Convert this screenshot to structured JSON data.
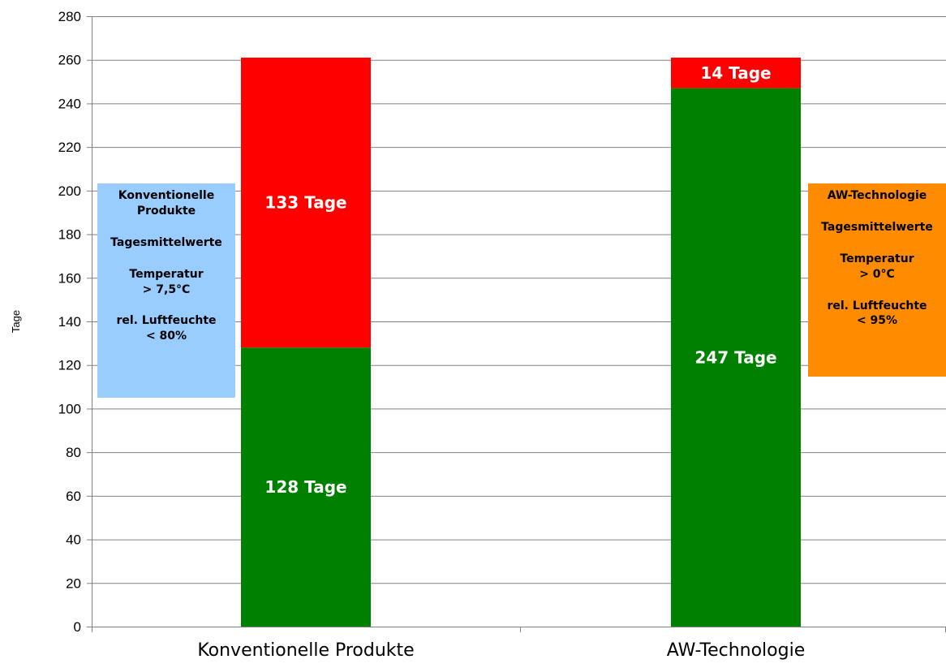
{
  "chart_data": {
    "type": "bar",
    "stacked": true,
    "categories": [
      "Konventionelle Produkte",
      "AW-Technologie"
    ],
    "series": [
      {
        "values": [
          128,
          247
        ],
        "labels": [
          "128 Tage",
          "247 Tage"
        ],
        "color": "#008000"
      },
      {
        "values": [
          133,
          14
        ],
        "labels": [
          "133 Tage",
          "14 Tage"
        ],
        "color": "#ff0000"
      }
    ],
    "ylabel": "Tage",
    "xlabel": "",
    "ylim": [
      0,
      280
    ],
    "yticks": [
      0,
      20,
      40,
      60,
      80,
      100,
      120,
      140,
      160,
      180,
      200,
      220,
      240,
      260,
      280
    ],
    "grid": true,
    "annotations": [
      {
        "color": "#99ccff",
        "lines": [
          "Konventionelle",
          "Produkte",
          "",
          "Tagesmittelwerte",
          "",
          "Temperatur",
          "> 7,5°C",
          "",
          "rel. Luftfeuchte",
          "< 80%"
        ]
      },
      {
        "color": "#ff8c00",
        "lines": [
          "AW-Technologie",
          "",
          "Tagesmittelwerte",
          "",
          "Temperatur",
          "> 0°C",
          "",
          "rel. Luftfeuchte",
          "< 95%"
        ]
      }
    ]
  }
}
